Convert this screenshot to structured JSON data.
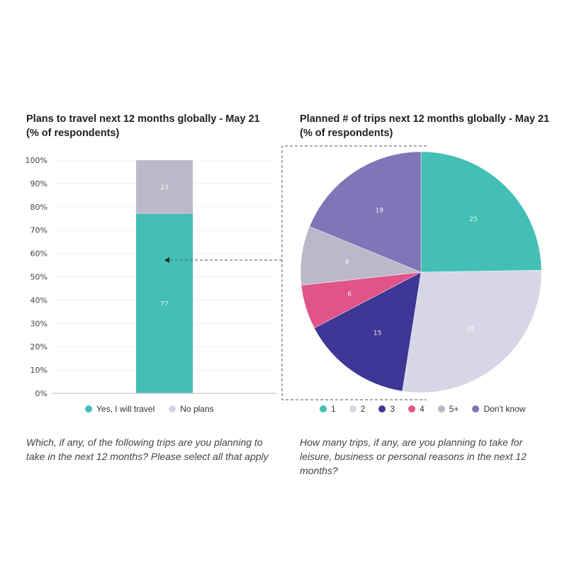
{
  "left_panel": {
    "title_line1": "Plans to travel next 12 months globally - May 21",
    "title_line2": "(% of respondents)",
    "question": "Which, if any, of the following trips are you planning to take in the next 12 months? Please select all that apply",
    "legend": [
      {
        "label": "Yes, I will travel",
        "color": "#43bfb5"
      },
      {
        "label": "No plans",
        "color": "#d5d4e4"
      }
    ]
  },
  "right_panel": {
    "title_line1": "Planned # of trips next 12 months globally - May 21",
    "title_line2": "(% of respondents)",
    "question": "How many trips, if any, are you planning to take for leisure, business or personal reasons in the next 12 months?",
    "legend": [
      {
        "label": "1",
        "color": "#43bfb5"
      },
      {
        "label": "2",
        "color": "#d7d6e5"
      },
      {
        "label": "3",
        "color": "#3e3795"
      },
      {
        "label": "4",
        "color": "#e05488"
      },
      {
        "label": "5+",
        "color": "#bbb8c9"
      },
      {
        "label": "Don't know",
        "color": "#7f76b8"
      }
    ]
  },
  "chart_data": [
    {
      "type": "bar",
      "stacked": true,
      "title": "Plans to travel next 12 months globally - May 21 (% of respondents)",
      "categories": [
        ""
      ],
      "series": [
        {
          "name": "Yes, I will travel",
          "values": [
            77
          ],
          "color": "#43bfb5"
        },
        {
          "name": "No plans",
          "values": [
            23
          ],
          "color": "#bcb9c9"
        }
      ],
      "yticks": [
        "0%",
        "10%",
        "20%",
        "30%",
        "40%",
        "50%",
        "60%",
        "70%",
        "80%",
        "90%",
        "100%"
      ],
      "ylim": [
        0,
        100
      ],
      "xlabel": "",
      "ylabel": "",
      "grid": true,
      "legend_position": "bottom"
    },
    {
      "type": "pie",
      "title": "Planned # of trips next 12 months globally - May 21 (% of respondents)",
      "categories": [
        "1",
        "2",
        "3",
        "4",
        "5+",
        "Don't know"
      ],
      "values": [
        25,
        28,
        15,
        6,
        8,
        19
      ],
      "colors": [
        "#43bfb5",
        "#d7d6e5",
        "#3e3795",
        "#e05488",
        "#bbb8c9",
        "#7f76b8"
      ],
      "start_angle": "12 o'clock",
      "direction": "clockwise",
      "legend_position": "bottom"
    }
  ]
}
